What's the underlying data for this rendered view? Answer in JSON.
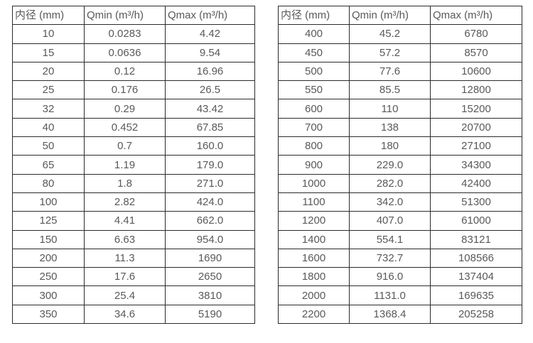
{
  "colors": {
    "border": "#2b2b2b",
    "text": "#595959",
    "background": "#ffffff"
  },
  "tables": [
    {
      "headers": [
        "内径 (mm)",
        "Qmin (m³/h)",
        "Qmax (m³/h)"
      ],
      "rows": [
        [
          "10",
          "0.0283",
          "4.42"
        ],
        [
          "15",
          "0.0636",
          "9.54"
        ],
        [
          "20",
          "0.12",
          "16.96"
        ],
        [
          "25",
          "0.176",
          "26.5"
        ],
        [
          "32",
          "0.29",
          "43.42"
        ],
        [
          "40",
          "0.452",
          "67.85"
        ],
        [
          "50",
          "0.7",
          "160.0"
        ],
        [
          "65",
          "1.19",
          "179.0"
        ],
        [
          "80",
          "1.8",
          "271.0"
        ],
        [
          "100",
          "2.82",
          "424.0"
        ],
        [
          "125",
          "4.41",
          "662.0"
        ],
        [
          "150",
          "6.63",
          "954.0"
        ],
        [
          "200",
          "11.3",
          "1690"
        ],
        [
          "250",
          "17.6",
          "2650"
        ],
        [
          "300",
          "25.4",
          "3810"
        ],
        [
          "350",
          "34.6",
          "5190"
        ]
      ]
    },
    {
      "headers": [
        "内径 (mm)",
        "Qmin (m³/h)",
        "Qmax (m³/h)"
      ],
      "rows": [
        [
          "400",
          "45.2",
          "6780"
        ],
        [
          "450",
          "57.2",
          "8570"
        ],
        [
          "500",
          "77.6",
          "10600"
        ],
        [
          "550",
          "85.5",
          "12800"
        ],
        [
          "600",
          "110",
          "15200"
        ],
        [
          "700",
          "138",
          "20700"
        ],
        [
          "800",
          "180",
          "27100"
        ],
        [
          "900",
          "229.0",
          "34300"
        ],
        [
          "1000",
          "282.0",
          "42400"
        ],
        [
          "1100",
          "342.0",
          "51300"
        ],
        [
          "1200",
          "407.0",
          "61000"
        ],
        [
          "1400",
          "554.1",
          "83121"
        ],
        [
          "1600",
          "732.7",
          "108566"
        ],
        [
          "1800",
          "916.0",
          "137404"
        ],
        [
          "2000",
          "1131.0",
          "169635"
        ],
        [
          "2200",
          "1368.4",
          "205258"
        ]
      ]
    }
  ]
}
